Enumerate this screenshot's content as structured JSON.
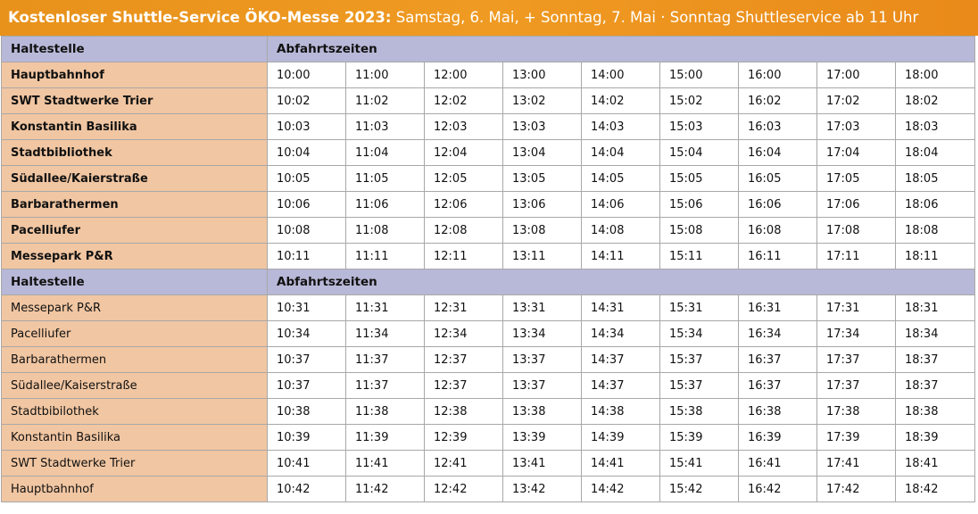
{
  "banner": {
    "title_bold": "Kostenloser Shuttle-Service ÖKO-Messe 2023:",
    "title_rest": " Samstag, 6. Mai, + Sonntag, 7. Mai · Sonntag Shuttleservice ab 11 Uhr"
  },
  "colors": {
    "banner": "#ee9620",
    "header_row": "#b8b8d8",
    "stop_column": "#f1c6a2"
  },
  "sections": [
    {
      "header": {
        "stop": "Haltestelle",
        "times": "Abfahrtszeiten"
      },
      "bold_stops": true,
      "rows": [
        {
          "stop": "Hauptbahnhof",
          "times": [
            "10:00",
            "11:00",
            "12:00",
            "13:00",
            "14:00",
            "15:00",
            "16:00",
            "17:00",
            "18:00"
          ]
        },
        {
          "stop": "SWT Stadtwerke Trier",
          "times": [
            "10:02",
            "11:02",
            "12:02",
            "13:02",
            "14:02",
            "15:02",
            "16:02",
            "17:02",
            "18:02"
          ]
        },
        {
          "stop": "Konstantin Basilika",
          "times": [
            "10:03",
            "11:03",
            "12:03",
            "13:03",
            "14:03",
            "15:03",
            "16:03",
            "17:03",
            "18:03"
          ]
        },
        {
          "stop": "Stadtbibliothek",
          "times": [
            "10:04",
            "11:04",
            "12:04",
            "13:04",
            "14:04",
            "15:04",
            "16:04",
            "17:04",
            "18:04"
          ]
        },
        {
          "stop": "Südallee/Kaierstraße",
          "times": [
            "10:05",
            "11:05",
            "12:05",
            "13:05",
            "14:05",
            "15:05",
            "16:05",
            "17:05",
            "18:05"
          ]
        },
        {
          "stop": "Barbarathermen",
          "times": [
            "10:06",
            "11:06",
            "12:06",
            "13:06",
            "14:06",
            "15:06",
            "16:06",
            "17:06",
            "18:06"
          ]
        },
        {
          "stop": "Pacelliufer",
          "times": [
            "10:08",
            "11:08",
            "12:08",
            "13:08",
            "14:08",
            "15:08",
            "16:08",
            "17:08",
            "18:08"
          ]
        },
        {
          "stop": "Messepark P&R",
          "times": [
            "10:11",
            "11:11",
            "12:11",
            "13:11",
            "14:11",
            "15:11",
            "16:11",
            "17:11",
            "18:11"
          ]
        }
      ]
    },
    {
      "header": {
        "stop": "Haltestelle",
        "times": "Abfahrtszeiten"
      },
      "bold_stops": false,
      "rows": [
        {
          "stop": "Messepark P&R",
          "times": [
            "10:31",
            "11:31",
            "12:31",
            "13:31",
            "14:31",
            "15:31",
            "16:31",
            "17:31",
            "18:31"
          ]
        },
        {
          "stop": "Pacelliufer",
          "times": [
            "10:34",
            "11:34",
            "12:34",
            "13:34",
            "14:34",
            "15:34",
            "16:34",
            "17:34",
            "18:34"
          ]
        },
        {
          "stop": "Barbarathermen",
          "times": [
            "10:37",
            "11:37",
            "12:37",
            "13:37",
            "14:37",
            "15:37",
            "16:37",
            "17:37",
            "18:37"
          ]
        },
        {
          "stop": "Südallee/Kaiserstraße",
          "times": [
            "10:37",
            "11:37",
            "12:37",
            "13:37",
            "14:37",
            "15:37",
            "16:37",
            "17:37",
            "18:37"
          ]
        },
        {
          "stop": "Stadtbibilothek",
          "times": [
            "10:38",
            "11:38",
            "12:38",
            "13:38",
            "14:38",
            "15:38",
            "16:38",
            "17:38",
            "18:38"
          ]
        },
        {
          "stop": "Konstantin Basilika",
          "times": [
            "10:39",
            "11:39",
            "12:39",
            "13:39",
            "14:39",
            "15:39",
            "16:39",
            "17:39",
            "18:39"
          ]
        },
        {
          "stop": "SWT Stadtwerke Trier",
          "times": [
            "10:41",
            "11:41",
            "12:41",
            "13:41",
            "14:41",
            "15:41",
            "16:41",
            "17:41",
            "18:41"
          ]
        },
        {
          "stop": "Hauptbahnhof",
          "times": [
            "10:42",
            "11:42",
            "12:42",
            "13:42",
            "14:42",
            "15:42",
            "16:42",
            "17:42",
            "18:42"
          ]
        }
      ]
    }
  ]
}
